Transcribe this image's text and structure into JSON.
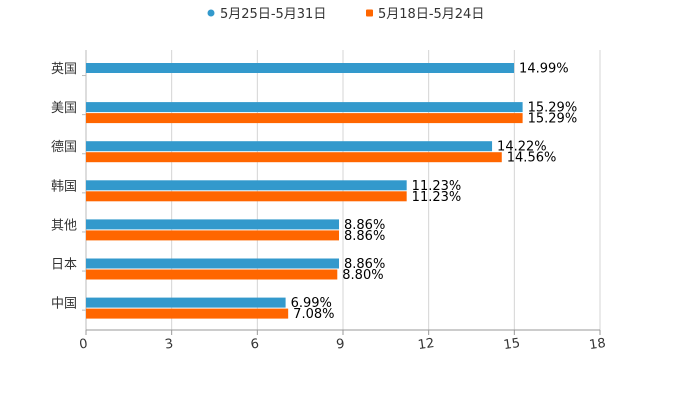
{
  "chart_data": {
    "type": "bar",
    "orientation": "horizontal",
    "title": "",
    "xlabel": "",
    "ylabel": "",
    "xlim": [
      0,
      18
    ],
    "xticks": [
      0,
      3,
      6,
      9,
      12,
      15,
      18
    ],
    "grid": true,
    "legend_position": "top-center",
    "categories": [
      "英国",
      "美国",
      "德国",
      "韩国",
      "其他",
      "日本",
      "中国"
    ],
    "series": [
      {
        "name": "5月25日-5月31日",
        "color": "#3399cc",
        "values": [
          14.99,
          15.29,
          14.22,
          11.23,
          8.86,
          8.86,
          6.99
        ],
        "labels": [
          "14.99%",
          "15.29%",
          "14.22%",
          "11.23%",
          "8.86%",
          "8.86%",
          "6.99%"
        ]
      },
      {
        "name": "5月18日-5月24日",
        "color": "#ff6600",
        "values": [
          null,
          15.29,
          14.56,
          11.23,
          8.86,
          8.8,
          7.08
        ],
        "labels": [
          null,
          "15.29%",
          "14.56%",
          "11.23%",
          "8.86%",
          "8.80%",
          "7.08%"
        ]
      }
    ]
  }
}
